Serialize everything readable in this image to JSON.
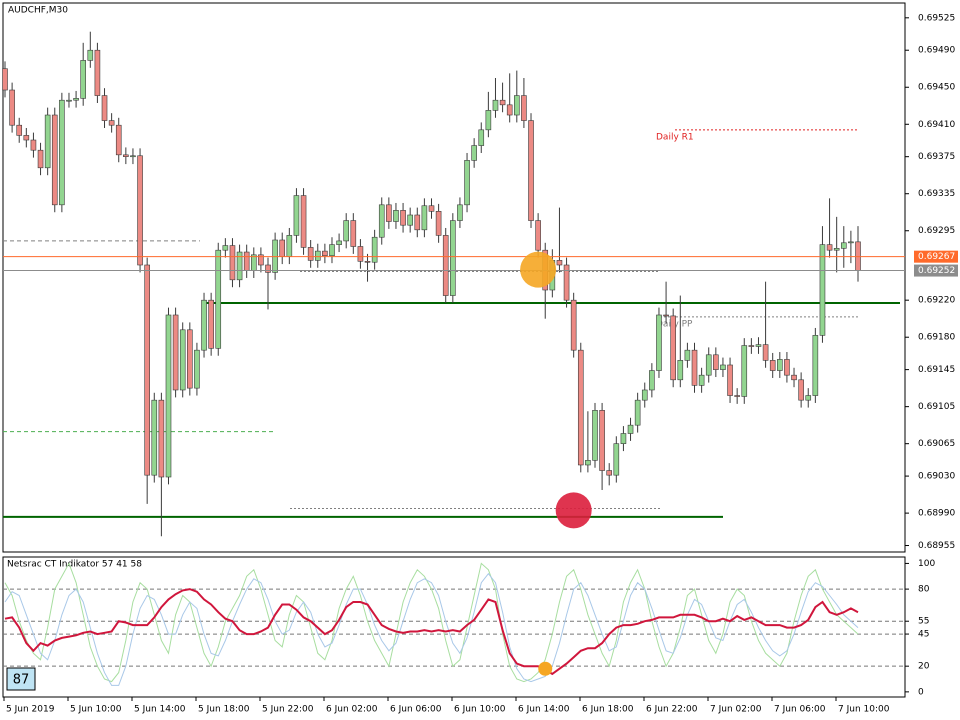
{
  "chart_data": [
    {
      "type": "candlestick",
      "title": "AUDCHF,M30",
      "up_color": "#92d590",
      "down_color": "#ec8a84",
      "outline_color": "#3a3a3a",
      "open": [
        0.6947,
        0.69447,
        0.69409,
        0.69398,
        0.69393,
        0.69382,
        0.69363,
        0.6942,
        0.69323,
        0.69436,
        0.69436,
        0.69438,
        0.69479,
        0.6949,
        0.69441,
        0.69414,
        0.69409,
        0.69377,
        0.69375,
        0.69376,
        0.69258,
        0.69031,
        0.69112,
        0.69029,
        0.69204,
        0.69123,
        0.69188,
        0.69125,
        0.69166,
        0.6922,
        0.69168,
        0.69274,
        0.69279,
        0.69242,
        0.69272,
        0.69252,
        0.69269,
        0.69258,
        0.6925,
        0.69285,
        0.69267,
        0.6929,
        0.69333,
        0.69277,
        0.69263,
        0.69273,
        0.69268,
        0.6928,
        0.69284,
        0.69306,
        0.69278,
        0.69262,
        0.69261,
        0.69288,
        0.69323,
        0.69305,
        0.69317,
        0.69301,
        0.69312,
        0.69296,
        0.69322,
        0.69316,
        0.6929,
        0.69225,
        0.69306,
        0.69323,
        0.69371,
        0.69387,
        0.69404,
        0.69425,
        0.69436,
        0.69431,
        0.6942,
        0.69441,
        0.69414,
        0.69306,
        0.69274,
        0.69231,
        0.69263,
        0.69258,
        0.6922,
        0.69166,
        0.69042,
        0.69047,
        0.69101,
        0.69036,
        0.69031,
        0.69065,
        0.69076,
        0.69085,
        0.69112,
        0.69123,
        0.69144,
        0.69204,
        0.69203,
        0.69134,
        0.69155,
        0.69166,
        0.69128,
        0.69139,
        0.69161,
        0.69145,
        0.6915,
        0.69117,
        0.69116,
        0.69171,
        0.6917,
        0.69172,
        0.69155,
        0.69144,
        0.69156,
        0.69139,
        0.69134,
        0.69112,
        0.69117,
        0.69182,
        0.6928,
        0.69274,
        0.69276,
        0.69282,
        0.69283
      ],
      "high": [
        0.69478,
        0.69455,
        0.69417,
        0.69406,
        0.69401,
        0.6939,
        0.69428,
        0.69428,
        0.69444,
        0.69444,
        0.69446,
        0.69498,
        0.6951,
        0.69498,
        0.69449,
        0.69422,
        0.69417,
        0.69385,
        0.69384,
        0.69384,
        0.69266,
        0.6912,
        0.6912,
        0.69212,
        0.69212,
        0.69196,
        0.69196,
        0.69174,
        0.69228,
        0.69228,
        0.69282,
        0.69287,
        0.69287,
        0.6928,
        0.6928,
        0.69277,
        0.69277,
        0.69266,
        0.69293,
        0.69293,
        0.69298,
        0.69341,
        0.69341,
        0.69285,
        0.69281,
        0.69281,
        0.69288,
        0.69292,
        0.69314,
        0.69314,
        0.69286,
        0.6927,
        0.69296,
        0.69331,
        0.69331,
        0.69325,
        0.69325,
        0.6932,
        0.6932,
        0.6933,
        0.6933,
        0.69324,
        0.69298,
        0.69314,
        0.69331,
        0.69379,
        0.69395,
        0.69412,
        0.69445,
        0.6946,
        0.69455,
        0.69465,
        0.69468,
        0.6946,
        0.69422,
        0.69314,
        0.69282,
        0.69275,
        0.6932,
        0.69266,
        0.69228,
        0.69174,
        0.691,
        0.69109,
        0.69109,
        0.69044,
        0.69073,
        0.69084,
        0.69093,
        0.6912,
        0.69131,
        0.69152,
        0.69212,
        0.6924,
        0.69211,
        0.69225,
        0.69174,
        0.69174,
        0.69147,
        0.69169,
        0.69169,
        0.69158,
        0.69158,
        0.69125,
        0.69179,
        0.69179,
        0.6918,
        0.6924,
        0.69163,
        0.69164,
        0.69164,
        0.69147,
        0.69142,
        0.69125,
        0.6919,
        0.693,
        0.6933,
        0.6931,
        0.693,
        0.69295,
        0.693
      ],
      "low": [
        0.69439,
        0.69401,
        0.6939,
        0.69385,
        0.69374,
        0.69355,
        0.69355,
        0.69315,
        0.69315,
        0.69428,
        0.69428,
        0.6943,
        0.69471,
        0.69433,
        0.69406,
        0.69401,
        0.69369,
        0.69367,
        0.69367,
        0.6925,
        0.69,
        0.69023,
        0.68965,
        0.69021,
        0.69115,
        0.69115,
        0.69117,
        0.69117,
        0.69158,
        0.6916,
        0.6916,
        0.69266,
        0.69234,
        0.69234,
        0.69244,
        0.69244,
        0.6925,
        0.6921,
        0.69242,
        0.69259,
        0.69259,
        0.69282,
        0.69269,
        0.69255,
        0.69255,
        0.6926,
        0.6926,
        0.69272,
        0.69276,
        0.6927,
        0.69254,
        0.6924,
        0.69253,
        0.6928,
        0.69297,
        0.69297,
        0.69293,
        0.69293,
        0.69288,
        0.69288,
        0.69308,
        0.69282,
        0.69217,
        0.69217,
        0.69298,
        0.69315,
        0.69363,
        0.69379,
        0.69396,
        0.69417,
        0.69423,
        0.69412,
        0.69412,
        0.69406,
        0.69298,
        0.69266,
        0.692,
        0.69223,
        0.6925,
        0.69212,
        0.69158,
        0.69034,
        0.69034,
        0.69039,
        0.69015,
        0.6902,
        0.69023,
        0.69057,
        0.69068,
        0.69077,
        0.69104,
        0.69115,
        0.69136,
        0.69195,
        0.69126,
        0.69126,
        0.69147,
        0.6912,
        0.6912,
        0.69131,
        0.69137,
        0.69137,
        0.69109,
        0.69108,
        0.69108,
        0.69162,
        0.69162,
        0.69147,
        0.69136,
        0.69136,
        0.69131,
        0.69126,
        0.69104,
        0.69104,
        0.69109,
        0.69174,
        0.69266,
        0.6925,
        0.69255,
        0.6926,
        0.6924
      ],
      "close": [
        0.69447,
        0.69409,
        0.69398,
        0.69393,
        0.69382,
        0.69363,
        0.6942,
        0.69323,
        0.69436,
        0.69436,
        0.69438,
        0.69479,
        0.6949,
        0.69441,
        0.69414,
        0.69409,
        0.69377,
        0.69375,
        0.69376,
        0.69258,
        0.69031,
        0.69112,
        0.69029,
        0.69204,
        0.69123,
        0.69188,
        0.69125,
        0.69166,
        0.6922,
        0.69168,
        0.69274,
        0.69279,
        0.69242,
        0.69272,
        0.69252,
        0.69269,
        0.69258,
        0.6925,
        0.69285,
        0.69267,
        0.6929,
        0.69333,
        0.69277,
        0.69263,
        0.69273,
        0.69268,
        0.6928,
        0.69284,
        0.69306,
        0.69278,
        0.69262,
        0.69261,
        0.69288,
        0.69323,
        0.69305,
        0.69317,
        0.69301,
        0.69312,
        0.69296,
        0.69322,
        0.69316,
        0.6929,
        0.69225,
        0.69306,
        0.69323,
        0.69371,
        0.69387,
        0.69404,
        0.69425,
        0.69436,
        0.69431,
        0.6942,
        0.69441,
        0.69414,
        0.69306,
        0.69274,
        0.69231,
        0.69263,
        0.69258,
        0.6922,
        0.69166,
        0.69042,
        0.69047,
        0.69101,
        0.69036,
        0.69031,
        0.69065,
        0.69076,
        0.69085,
        0.69112,
        0.69123,
        0.69144,
        0.69204,
        0.69203,
        0.69134,
        0.69155,
        0.69166,
        0.69128,
        0.69139,
        0.69161,
        0.69145,
        0.6915,
        0.69117,
        0.69116,
        0.69171,
        0.6917,
        0.69172,
        0.69155,
        0.69144,
        0.69156,
        0.69139,
        0.69134,
        0.69112,
        0.69117,
        0.69182,
        0.6928,
        0.69274,
        0.69276,
        0.69282,
        0.69283,
        0.69252
      ],
      "ylim": [
        0.68948,
        0.69541
      ],
      "yticks": [
        0.69525,
        {
          "value": 0.6949,
          "label": "0.69490"
        },
        {
          "value": 0.6945,
          "label": "0.69450"
        },
        {
          "value": 0.6941,
          "label": "0.69410"
        },
        0.69375,
        0.69335,
        0.69295,
        {
          "value": 0.6922,
          "label": "0.69220"
        },
        {
          "value": 0.6918,
          "label": "0.69180"
        },
        0.69145,
        0.69105,
        0.69065,
        {
          "value": 0.6903,
          "label": "0.69030"
        },
        {
          "value": 0.6899,
          "label": "0.68990"
        },
        0.68955
      ],
      "price_lines": [
        {
          "value": 0.69267,
          "color": "#ff6a2b"
        },
        {
          "value": 0.69252,
          "color": "#8c8c8c"
        }
      ],
      "levels": [
        {
          "value": 0.69284,
          "color": "#808080",
          "style": "dash"
        },
        {
          "value": 0.69251,
          "color": "#808080",
          "style": "dot"
        },
        {
          "value": 0.69078,
          "color": "#4caf50",
          "style": "dash"
        },
        {
          "value": 0.68995,
          "color": "#808080",
          "style": "dot"
        },
        {
          "value": 0.69404,
          "color": "#e02020",
          "style": "dot",
          "label": "Daily R1"
        },
        {
          "value": 0.69202,
          "color": "#808080",
          "style": "dot",
          "label": "Daily PP"
        },
        {
          "value": 0.69217,
          "color": "#006400",
          "style": "solid"
        },
        {
          "value": 0.68986,
          "color": "#006400",
          "style": "solid"
        }
      ],
      "markers": [
        {
          "value": 0.69253,
          "color": "#f5a623"
        },
        {
          "value": 0.68993,
          "color": "#dc1e3c"
        }
      ],
      "x_labels": [
        "5 Jun 2019",
        "5 Jun 10:00",
        "5 Jun 14:00",
        "5 Jun 18:00",
        "5 Jun 22:00",
        "6 Jun 02:00",
        "6 Jun 06:00",
        "6 Jun 10:00",
        "6 Jun 14:00",
        "6 Jun 18:00",
        "6 Jun 22:00",
        "7 Jun 02:00",
        "7 Jun 06:00",
        "7 Jun 10:00"
      ]
    },
    {
      "type": "line",
      "title": "Netsrac CT Indikator 57 41 58",
      "badge": 87,
      "ylim": [
        -4,
        105
      ],
      "yticks": [
        100,
        80,
        55,
        45,
        20,
        0
      ],
      "levels": [
        80,
        55,
        45,
        20
      ],
      "series": [
        {
          "color": "#a8dea0",
          "width": 1,
          "values": [
            85,
            75,
            55,
            40,
            30,
            25,
            50,
            80,
            90,
            100,
            85,
            60,
            35,
            20,
            10,
            8,
            15,
            40,
            70,
            85,
            80,
            60,
            40,
            30,
            60,
            75,
            70,
            50,
            30,
            20,
            35,
            55,
            65,
            75,
            90,
            95,
            80,
            60,
            40,
            35,
            60,
            75,
            70,
            50,
            30,
            25,
            40,
            65,
            80,
            90,
            75,
            55,
            40,
            30,
            20,
            45,
            70,
            85,
            95,
            90,
            80,
            65,
            40,
            20,
            25,
            50,
            75,
            100,
            95,
            80,
            45,
            20,
            10,
            8,
            10,
            15,
            25,
            45,
            70,
            90,
            95,
            80,
            60,
            45,
            30,
            20,
            40,
            70,
            85,
            95,
            80,
            55,
            35,
            20,
            30,
            50,
            75,
            80,
            60,
            40,
            30,
            45,
            70,
            80,
            75,
            55,
            40,
            30,
            25,
            20,
            30,
            55,
            75,
            90,
            95,
            80,
            70,
            60,
            55,
            50,
            45
          ]
        },
        {
          "color": "#a9c8e8",
          "width": 1,
          "values": [
            70,
            78,
            75,
            60,
            45,
            30,
            25,
            40,
            60,
            75,
            80,
            70,
            50,
            30,
            15,
            5,
            5,
            20,
            45,
            65,
            75,
            72,
            60,
            45,
            45,
            60,
            70,
            65,
            45,
            30,
            28,
            40,
            55,
            68,
            80,
            88,
            85,
            72,
            55,
            45,
            48,
            62,
            70,
            62,
            45,
            35,
            38,
            52,
            68,
            80,
            80,
            68,
            52,
            40,
            32,
            38,
            55,
            72,
            85,
            88,
            85,
            75,
            55,
            38,
            30,
            42,
            62,
            85,
            92,
            85,
            62,
            35,
            18,
            10,
            8,
            10,
            12,
            20,
            38,
            60,
            80,
            85,
            75,
            60,
            45,
            32,
            35,
            55,
            75,
            85,
            80,
            65,
            48,
            32,
            30,
            42,
            60,
            72,
            68,
            55,
            42,
            40,
            55,
            68,
            72,
            62,
            50,
            40,
            32,
            28,
            32,
            45,
            62,
            78,
            85,
            82,
            75,
            68,
            60,
            55,
            50
          ]
        },
        {
          "color": "#d0163c",
          "width": 2,
          "values": [
            57,
            58,
            50,
            38,
            32,
            38,
            36,
            40,
            42,
            43,
            44,
            46,
            47,
            45,
            46,
            47,
            55,
            54,
            52,
            52,
            52,
            58,
            66,
            72,
            76,
            79,
            80,
            78,
            72,
            68,
            62,
            57,
            55,
            48,
            45,
            45,
            47,
            50,
            60,
            68,
            68,
            64,
            58,
            55,
            50,
            45,
            48,
            56,
            66,
            70,
            70,
            68,
            60,
            52,
            49,
            47,
            46,
            47,
            47,
            48,
            47,
            48,
            47,
            48,
            47,
            52,
            56,
            64,
            72,
            70,
            48,
            30,
            22,
            20,
            20,
            20,
            17,
            14,
            18,
            22,
            27,
            32,
            34,
            34,
            38,
            45,
            50,
            52,
            52,
            53,
            55,
            56,
            58,
            58,
            58,
            60,
            60,
            60,
            58,
            55,
            55,
            57,
            55,
            59,
            56,
            58,
            55,
            52,
            52,
            52,
            50,
            50,
            52,
            56,
            66,
            70,
            62,
            60,
            62,
            65,
            62
          ]
        }
      ],
      "markers": [
        {
          "value": 18,
          "color": "#f5a623"
        }
      ]
    }
  ]
}
